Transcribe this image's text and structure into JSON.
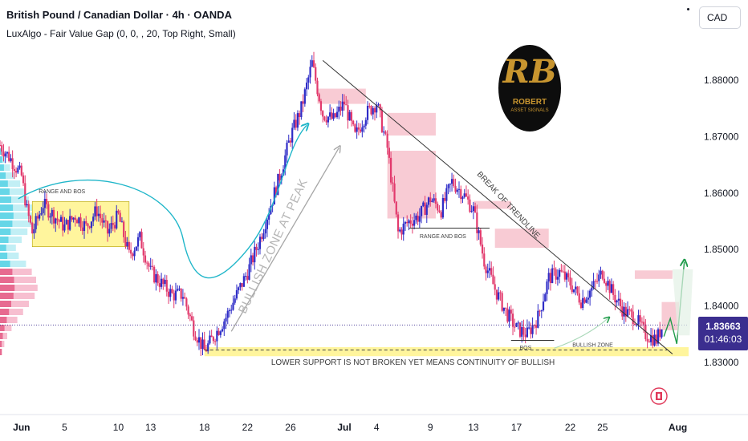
{
  "header": {
    "title": "British Pound / Canadian Dollar · 4h · OANDA",
    "indicator": "LuxAlgo - Fair Value Gap (0, 0, , 20, Top Right, Small)"
  },
  "currency_button": "CAD",
  "price_badge": {
    "price": "1.83663",
    "countdown": "01:46:03"
  },
  "logo": {
    "monogram": "RB",
    "line1": "ROBERT",
    "line2": "ASSET SIGNALS"
  },
  "colors": {
    "bull_candle": "#2e2cc7",
    "bear_candle": "#e23a6d",
    "fvg_box": "#f7c5cf",
    "range_box": "#fff59d",
    "support_zone": "#fff59d",
    "badge": "#3b2e8f",
    "curve_cyan": "#1fb6c9",
    "arrow_gray": "#a6a6a6",
    "arrow_green": "#1f9b4a"
  },
  "chart_data": {
    "type": "candlestick",
    "symbol": "GBPCAD",
    "timeframe": "4h",
    "y_range": [
      1.8275,
      1.8865
    ],
    "price_ticks": [
      "1.88000",
      "1.87000",
      "1.86000",
      "1.85000",
      "1.84000",
      "1.83000"
    ],
    "price_tick_values": [
      1.88,
      1.87,
      1.86,
      1.85,
      1.84,
      1.83
    ],
    "x_ticks": [
      "Jun",
      "5",
      "10",
      "13",
      "18",
      "22",
      "26",
      "Jul",
      "4",
      "9",
      "13",
      "17",
      "22",
      "25",
      "Aug"
    ],
    "x_tick_days": [
      0,
      4,
      9,
      12,
      17,
      21,
      25,
      30,
      33,
      38,
      42,
      46,
      51,
      54,
      61
    ],
    "day_range": [
      -2,
      62
    ],
    "last_price": 1.83663,
    "price_path": [
      [
        -2,
        1.8685
      ],
      [
        -1,
        1.866
      ],
      [
        0,
        1.863
      ],
      [
        0.5,
        1.857
      ],
      [
        1,
        1.853
      ],
      [
        2,
        1.858
      ],
      [
        3,
        1.856
      ],
      [
        4,
        1.854
      ],
      [
        5,
        1.856
      ],
      [
        6,
        1.854
      ],
      [
        7,
        1.857
      ],
      [
        8,
        1.853
      ],
      [
        9,
        1.856
      ],
      [
        10,
        1.849
      ],
      [
        11,
        1.852
      ],
      [
        12,
        1.846
      ],
      [
        13,
        1.844
      ],
      [
        14,
        1.842
      ],
      [
        15,
        1.842
      ],
      [
        16,
        1.836
      ],
      [
        17,
        1.832
      ],
      [
        18,
        1.835
      ],
      [
        19,
        1.838
      ],
      [
        20,
        1.842
      ],
      [
        21,
        1.846
      ],
      [
        22,
        1.851
      ],
      [
        23,
        1.857
      ],
      [
        24,
        1.863
      ],
      [
        25,
        1.87
      ],
      [
        26,
        1.875
      ],
      [
        27,
        1.883
      ],
      [
        28,
        1.874
      ],
      [
        29,
        1.873
      ],
      [
        30,
        1.876
      ],
      [
        31,
        1.87
      ],
      [
        32,
        1.874
      ],
      [
        33,
        1.876
      ],
      [
        34,
        1.868
      ],
      [
        35,
        1.853
      ],
      [
        36,
        1.855
      ],
      [
        37,
        1.856
      ],
      [
        38,
        1.859
      ],
      [
        39,
        1.857
      ],
      [
        40,
        1.862
      ],
      [
        41,
        1.86
      ],
      [
        42,
        1.857
      ],
      [
        43,
        1.848
      ],
      [
        44,
        1.843
      ],
      [
        45,
        1.839
      ],
      [
        46,
        1.836
      ],
      [
        47,
        1.835
      ],
      [
        48,
        1.838
      ],
      [
        49,
        1.845
      ],
      [
        50,
        1.846
      ],
      [
        51,
        1.844
      ],
      [
        52,
        1.841
      ],
      [
        53,
        1.843
      ],
      [
        54,
        1.846
      ],
      [
        55,
        1.842
      ],
      [
        56,
        1.839
      ],
      [
        57,
        1.838
      ],
      [
        58,
        1.835
      ],
      [
        59,
        1.834
      ],
      [
        59.6,
        1.8366
      ]
    ],
    "fvg_boxes": [
      {
        "d1": 27.5,
        "d2": 32,
        "top": 1.8785,
        "bottom": 1.8758
      },
      {
        "d1": 34,
        "d2": 38.5,
        "top": 1.8742,
        "bottom": 1.8702
      },
      {
        "d1": 34,
        "d2": 38.5,
        "top": 1.8675,
        "bottom": 1.8555
      },
      {
        "d1": 42,
        "d2": 45.5,
        "top": 1.8586,
        "bottom": 1.8572
      },
      {
        "d1": 44,
        "d2": 49,
        "top": 1.8537,
        "bottom": 1.8503
      },
      {
        "d1": 57,
        "d2": 60.5,
        "top": 1.8463,
        "bottom": 1.8448
      },
      {
        "d1": 59.5,
        "d2": 63,
        "top": 1.8407,
        "bottom": 1.8357
      }
    ],
    "range_box": {
      "d1": 1,
      "d2": 10,
      "top": 1.8585,
      "bottom": 1.8505
    },
    "support_zone": {
      "d1": 17,
      "d2": 62,
      "top": 1.8327,
      "bottom": 1.8311
    },
    "dashed_support": {
      "d1": 17,
      "d2": 60,
      "value": 1.8322
    },
    "trendline": {
      "d1": 28,
      "v1": 1.8835,
      "d2": 60.5,
      "v2": 1.8315
    },
    "bos_line_1": {
      "d1": 36,
      "d2": 43.5,
      "value": 1.8538
    },
    "bos_line_2": {
      "d1": 45.5,
      "d2": 49.5,
      "value": 1.8339
    },
    "projection_path": [
      [
        59.7,
        1.8346
      ],
      [
        60.3,
        1.8378
      ],
      [
        60.9,
        1.8333
      ],
      [
        61.6,
        1.8478
      ]
    ],
    "annotations": {
      "range_and_bos_1": "RANGE AND BOS",
      "range_and_bos_2": "RANGE AND BOS",
      "bullish_zone_at_peak": "BULLISH ZONE AT PEAK",
      "break_of_trendline": "BREAK OF TRENDLINE",
      "bos": "BOS",
      "bullish_zone": "BULLISH ZONE",
      "lower_support": "LOWER SUPPORT IS NOT BROKEN YET MEANS CONTINUITY OF BULLISH"
    }
  }
}
